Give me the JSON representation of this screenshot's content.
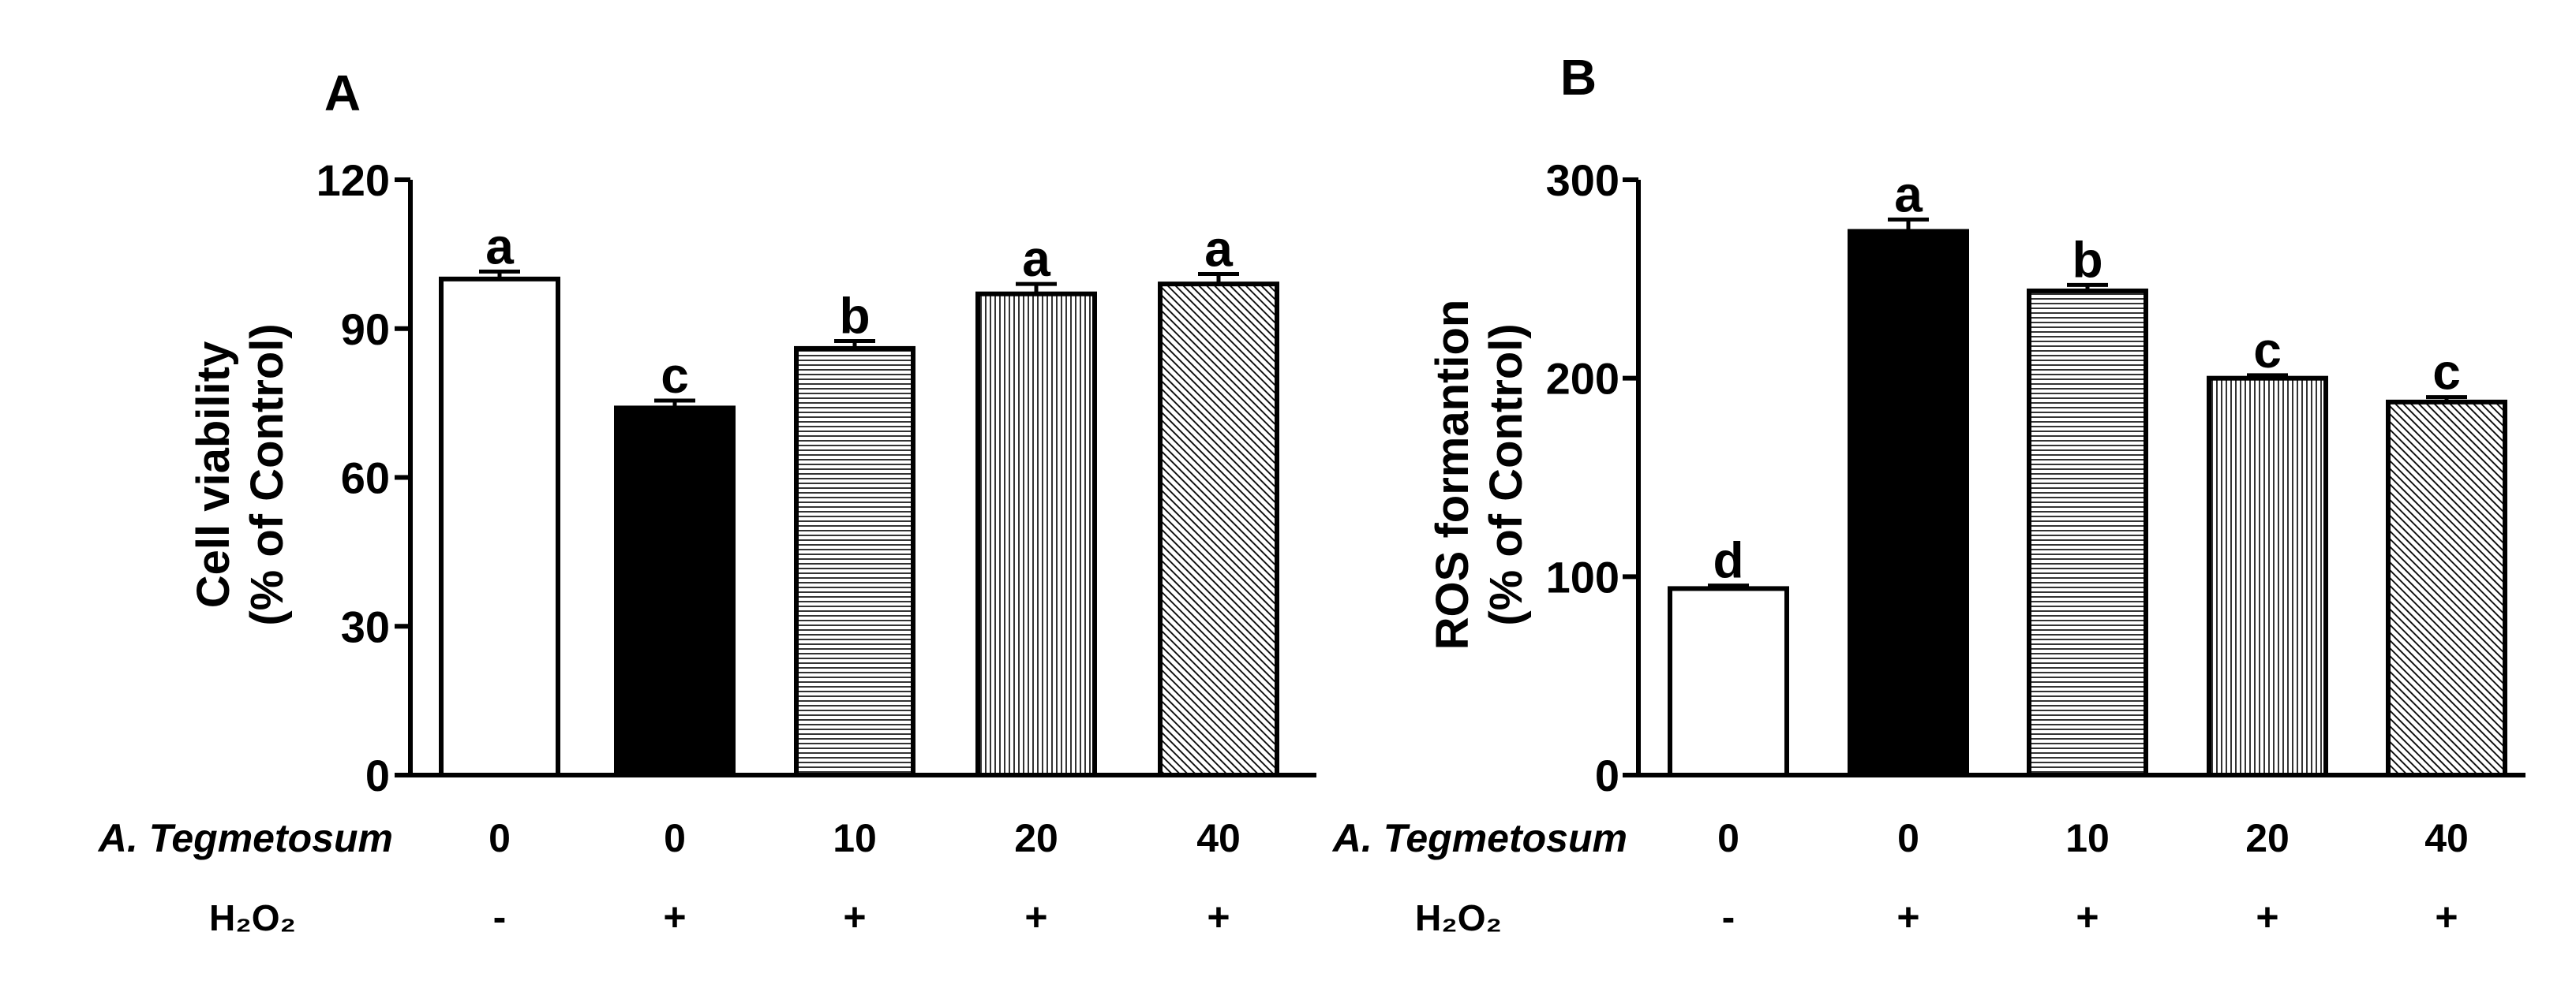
{
  "chart_data": [
    {
      "type": "bar",
      "panel_label": "A",
      "ylabel_line1": "Cell viability",
      "ylabel_line2": "(% of Control)",
      "ylim": [
        0,
        120
      ],
      "yticks": [
        "0",
        "30",
        "60",
        "90",
        "120"
      ],
      "categories": [
        "0 / -",
        "0 / +",
        "10 / +",
        "20 / +",
        "40 / +"
      ],
      "values": [
        100,
        74,
        86,
        97,
        99
      ],
      "errors": [
        1.5,
        1.5,
        1.5,
        2,
        2
      ],
      "significance": [
        "a",
        "c",
        "b",
        "a",
        "a"
      ],
      "fills": [
        "white",
        "black",
        "hlines",
        "vlines",
        "diag"
      ],
      "treatment_row_label": "A. Tegmetosum",
      "treatment_values": [
        "0",
        "0",
        "10",
        "20",
        "40"
      ],
      "h2o2_row_label": "H₂O₂",
      "h2o2_values": [
        "-",
        "+",
        "+",
        "+",
        "+"
      ]
    },
    {
      "type": "bar",
      "panel_label": "B",
      "ylabel_line1": "ROS formantion",
      "ylabel_line2": "(% of Control)",
      "ylim": [
        0,
        300
      ],
      "yticks": [
        "0",
        "100",
        "200",
        "300"
      ],
      "categories": [
        "0 / -",
        "0 / +",
        "10 / +",
        "20 / +",
        "40 / +"
      ],
      "values": [
        94,
        274,
        244,
        200,
        188
      ],
      "errors": [
        1.5,
        6,
        3,
        1.5,
        2.5
      ],
      "significance": [
        "d",
        "a",
        "b",
        "c",
        "c"
      ],
      "fills": [
        "white",
        "black",
        "hlines",
        "vlines",
        "diag"
      ],
      "treatment_row_label": "A. Tegmetosum",
      "treatment_values": [
        "0",
        "0",
        "10",
        "20",
        "40"
      ],
      "h2o2_row_label": "H₂O₂",
      "h2o2_values": [
        "-",
        "+",
        "+",
        "+",
        "+"
      ]
    }
  ]
}
